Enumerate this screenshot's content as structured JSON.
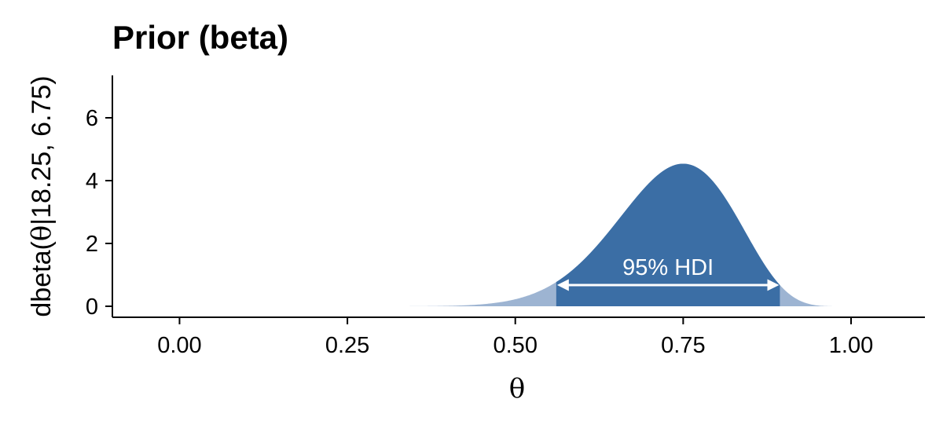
{
  "chart_data": {
    "type": "area",
    "title": "Prior (beta)",
    "xlabel": "θ",
    "ylabel": {
      "prefix": "dbeta",
      "open": "(",
      "theta": "θ",
      "rest": "|18.25, 6.75",
      "close": ")"
    },
    "distribution": {
      "family": "beta",
      "alpha": 18.25,
      "beta": 6.75
    },
    "xlim": [
      -0.1,
      1.11
    ],
    "ylim": [
      -0.35,
      7.35
    ],
    "x_ticks": [
      0.0,
      0.25,
      0.5,
      0.75,
      1.0
    ],
    "x_tick_labels": [
      "0.00",
      "0.25",
      "0.50",
      "0.75",
      "1.00"
    ],
    "y_ticks": [
      0,
      2,
      4,
      6
    ],
    "y_tick_labels": [
      "0",
      "2",
      "4",
      "6"
    ],
    "hdi": {
      "label": "95% HDI",
      "lower": 0.561,
      "upper": 0.894
    },
    "colors": {
      "hdi_fill": "#3b6ea5",
      "tail_fill": "#9db4d2",
      "arrow": "#ffffff",
      "axis": "#000000"
    },
    "grid": false,
    "legend": "none"
  }
}
